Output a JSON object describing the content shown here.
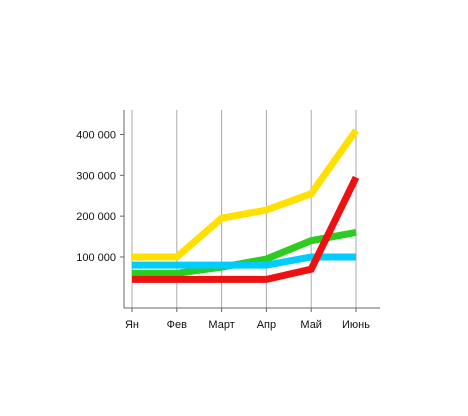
{
  "chart_data": {
    "type": "line",
    "categories": [
      "Ян",
      "Фев",
      "Март",
      "Апр",
      "Май",
      "Июнь"
    ],
    "y_ticks": [
      {
        "value": 100000,
        "label": "100 000"
      },
      {
        "value": 200000,
        "label": "200 000"
      },
      {
        "value": 300000,
        "label": "300 000"
      },
      {
        "value": 400000,
        "label": "400 000"
      }
    ],
    "ylim": [
      -25000,
      460000
    ],
    "grid": {
      "vertical": true,
      "horizontal": false
    },
    "series": [
      {
        "color": "#ffe000",
        "values": [
          100000,
          100000,
          195000,
          215000,
          255000,
          410000
        ]
      },
      {
        "color": "#2ecc20",
        "values": [
          60000,
          60000,
          75000,
          95000,
          140000,
          160000
        ]
      },
      {
        "color": "#00ccff",
        "values": [
          80000,
          80000,
          80000,
          80000,
          100000,
          100000
        ]
      },
      {
        "color": "#ee1111",
        "values": [
          45000,
          45000,
          45000,
          45000,
          70000,
          295000
        ]
      }
    ]
  }
}
